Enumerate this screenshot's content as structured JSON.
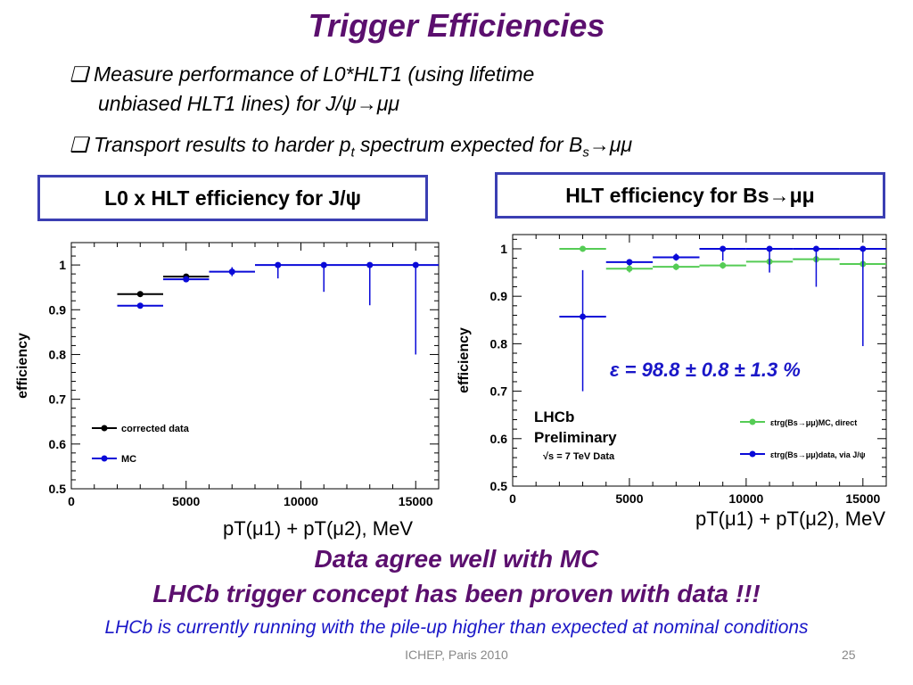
{
  "slide": {
    "title": "Trigger Efficiencies",
    "bullet1_line1": "Measure performance of L0*HLT1 (using lifetime",
    "bullet1_line2": "unbiased HLT1 lines) for J/ψ→μμ",
    "bullet2_pre": "Transport results to harder p",
    "bullet2_sub1": "t",
    "bullet2_mid": " spectrum expected for B",
    "bullet2_sub2": "s",
    "bullet2_post": "→μμ",
    "box_left": "L0 x HLT efficiency for J/ψ",
    "box_right": "HLT efficiency for Bs→μμ",
    "xlabel_left": "pT(μ1) + pT(μ2), MeV",
    "xlabel_right": "pT(μ1) + pT(μ2), MeV",
    "conclusion1": "Data agree well with MC",
    "conclusion2": "LHCb trigger concept has been proven with data !!!",
    "conclusion3": "LHCb is currently running with the pile-up higher than expected at nominal conditions",
    "footer_center": "ICHEP, Paris 2010",
    "page_number": "25",
    "colors": {
      "title": "#5b0f6e",
      "box_border": "#3b3fb3",
      "blue": "#0a0ad8",
      "green": "#55cc55",
      "black": "#000000"
    }
  },
  "chart_data": [
    {
      "type": "scatter",
      "title": "",
      "xlabel": "",
      "ylabel": "efficiency",
      "xlim": [
        0,
        16000
      ],
      "ylim": [
        0.5,
        1.05
      ],
      "xticks": [
        "0",
        "5000",
        "10000",
        "15000"
      ],
      "yticks": [
        "0.5",
        "0.6",
        "0.7",
        "0.8",
        "0.9",
        "1"
      ],
      "legend_position": "bottom-left",
      "series": [
        {
          "name": "corrected data",
          "color": "#000000",
          "points": [
            {
              "x": 3000,
              "xlo": 2000,
              "xhi": 4000,
              "y": 0.935,
              "ylo": 0.935,
              "yhi": 0.935
            },
            {
              "x": 5000,
              "xlo": 4000,
              "xhi": 6000,
              "y": 0.974,
              "ylo": 0.974,
              "yhi": 0.974
            }
          ]
        },
        {
          "name": "MC",
          "color": "#0a0ad8",
          "points": [
            {
              "x": 3000,
              "xlo": 2000,
              "xhi": 4000,
              "y": 0.909,
              "ylo": 0.909,
              "yhi": 0.909
            },
            {
              "x": 5000,
              "xlo": 4000,
              "xhi": 6000,
              "y": 0.968,
              "ylo": 0.962,
              "yhi": 0.975
            },
            {
              "x": 7000,
              "xlo": 6000,
              "xhi": 8000,
              "y": 0.985,
              "ylo": 0.975,
              "yhi": 0.995
            },
            {
              "x": 9000,
              "xlo": 8000,
              "xhi": 10000,
              "y": 1.0,
              "ylo": 0.97,
              "yhi": 1.0
            },
            {
              "x": 11000,
              "xlo": 10000,
              "xhi": 12000,
              "y": 1.0,
              "ylo": 0.94,
              "yhi": 1.0
            },
            {
              "x": 13000,
              "xlo": 12000,
              "xhi": 14000,
              "y": 1.0,
              "ylo": 0.91,
              "yhi": 1.0
            },
            {
              "x": 15000,
              "xlo": 14000,
              "xhi": 16000,
              "y": 1.0,
              "ylo": 0.8,
              "yhi": 1.0
            }
          ]
        }
      ]
    },
    {
      "type": "scatter",
      "title": "",
      "xlabel": "",
      "ylabel": "efficiency",
      "xlim": [
        0,
        16000
      ],
      "ylim": [
        0.5,
        1.03
      ],
      "xticks": [
        "0",
        "5000",
        "10000",
        "15000"
      ],
      "yticks": [
        "0.5",
        "0.6",
        "0.7",
        "0.8",
        "0.9",
        "1"
      ],
      "annotation": "ε = 98.8 ± 0.8 ± 1.3 %",
      "lhcb_label_1": "LHCb",
      "lhcb_label_2": "Preliminary",
      "energy_label": "√s = 7 TeV Data",
      "legend_position": "bottom-right",
      "series": [
        {
          "name": "εtrg(Bs→μμ)MC, direct",
          "color": "#55cc55",
          "points": [
            {
              "x": 3000,
              "xlo": 2000,
              "xhi": 4000,
              "y": 1.0,
              "ylo": 1.0,
              "yhi": 1.0
            },
            {
              "x": 5000,
              "xlo": 4000,
              "xhi": 6000,
              "y": 0.958,
              "ylo": 0.95,
              "yhi": 0.966
            },
            {
              "x": 7000,
              "xlo": 6000,
              "xhi": 8000,
              "y": 0.962,
              "ylo": 0.955,
              "yhi": 0.969
            },
            {
              "x": 9000,
              "xlo": 8000,
              "xhi": 10000,
              "y": 0.965,
              "ylo": 0.958,
              "yhi": 0.972
            },
            {
              "x": 11000,
              "xlo": 10000,
              "xhi": 12000,
              "y": 0.973,
              "ylo": 0.966,
              "yhi": 0.98
            },
            {
              "x": 13000,
              "xlo": 12000,
              "xhi": 14000,
              "y": 0.978,
              "ylo": 0.97,
              "yhi": 0.986
            },
            {
              "x": 15000,
              "xlo": 14000,
              "xhi": 16000,
              "y": 0.968,
              "ylo": 0.96,
              "yhi": 0.976
            }
          ]
        },
        {
          "name": "εtrg(Bs→μμ)data, via J/ψ",
          "color": "#0a0ad8",
          "points": [
            {
              "x": 3000,
              "xlo": 2000,
              "xhi": 4000,
              "y": 0.857,
              "ylo": 0.7,
              "yhi": 0.955
            },
            {
              "x": 5000,
              "xlo": 4000,
              "xhi": 6000,
              "y": 0.972,
              "ylo": 0.965,
              "yhi": 0.978
            },
            {
              "x": 7000,
              "xlo": 6000,
              "xhi": 8000,
              "y": 0.982,
              "ylo": 0.975,
              "yhi": 0.99
            },
            {
              "x": 9000,
              "xlo": 8000,
              "xhi": 10000,
              "y": 1.0,
              "ylo": 0.975,
              "yhi": 1.0
            },
            {
              "x": 11000,
              "xlo": 10000,
              "xhi": 12000,
              "y": 1.0,
              "ylo": 0.95,
              "yhi": 1.0
            },
            {
              "x": 13000,
              "xlo": 12000,
              "xhi": 14000,
              "y": 1.0,
              "ylo": 0.92,
              "yhi": 1.0
            },
            {
              "x": 15000,
              "xlo": 14000,
              "xhi": 16000,
              "y": 1.0,
              "ylo": 0.795,
              "yhi": 1.0
            }
          ]
        }
      ]
    }
  ]
}
